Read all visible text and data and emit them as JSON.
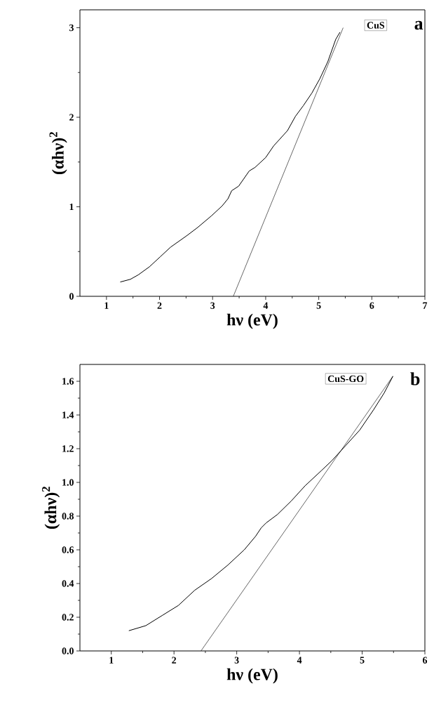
{
  "chart_data": [
    {
      "type": "line",
      "xlabel": "hν (eV)",
      "ylabel": "(αhν)$^{2}$",
      "annotations": [
        "CuS",
        "a"
      ],
      "xlim": [
        0.5,
        7
      ],
      "ylim": [
        0,
        3.2
      ],
      "xticks": [
        1,
        2,
        3,
        4,
        5,
        6,
        7
      ],
      "yticks": [
        0,
        1,
        2,
        3
      ],
      "series": [
        {
          "color": "#000000",
          "x": [
            1.26,
            1.45,
            1.6,
            1.81,
            2.01,
            2.21,
            2.52,
            2.72,
            2.98,
            3.18,
            3.29,
            3.36,
            3.49,
            3.69,
            3.8,
            4.0,
            4.15,
            4.41,
            4.56,
            4.71,
            4.87,
            5.02,
            5.17,
            5.32,
            5.4
          ],
          "values": [
            0.16,
            0.19,
            0.24,
            0.33,
            0.44,
            0.55,
            0.68,
            0.77,
            0.9,
            1.01,
            1.09,
            1.18,
            1.23,
            1.4,
            1.44,
            1.55,
            1.68,
            1.85,
            2.01,
            2.13,
            2.27,
            2.43,
            2.62,
            2.87,
            2.95
          ]
        },
        {
          "type": "line",
          "color": "#000000",
          "x": [
            3.39,
            5.46
          ],
          "values": [
            0,
            3.0
          ]
        }
      ]
    },
    {
      "type": "line",
      "xlabel": "hν (eV)",
      "ylabel": "(αhν)$^{2}$",
      "annotations": [
        "CuS-GO",
        "b"
      ],
      "xlim": [
        0.5,
        6
      ],
      "ylim": [
        0,
        1.7
      ],
      "xticks": [
        1,
        2,
        3,
        4,
        5,
        6
      ],
      "yticks": [
        {
          "value": 0,
          "label": "0.0"
        },
        0.2,
        0.4,
        0.6,
        0.8,
        {
          "value": 1,
          "label": "1.0"
        },
        1.2,
        1.4,
        1.6
      ],
      "series": [
        {
          "color": "#000000",
          "x": [
            1.28,
            1.55,
            1.81,
            2.07,
            2.33,
            2.6,
            2.86,
            3.12,
            3.3,
            3.39,
            3.47,
            3.65,
            3.87,
            4.09,
            4.35,
            4.52,
            4.74,
            4.96,
            5.18,
            5.35,
            5.49
          ],
          "values": [
            0.12,
            0.15,
            0.21,
            0.27,
            0.36,
            0.43,
            0.51,
            0.6,
            0.68,
            0.73,
            0.76,
            0.81,
            0.89,
            0.98,
            1.07,
            1.13,
            1.22,
            1.31,
            1.43,
            1.53,
            1.63
          ]
        },
        {
          "type": "line",
          "color": "#000000",
          "x": [
            2.43,
            5.49
          ],
          "values": [
            0,
            1.63
          ]
        }
      ]
    }
  ]
}
